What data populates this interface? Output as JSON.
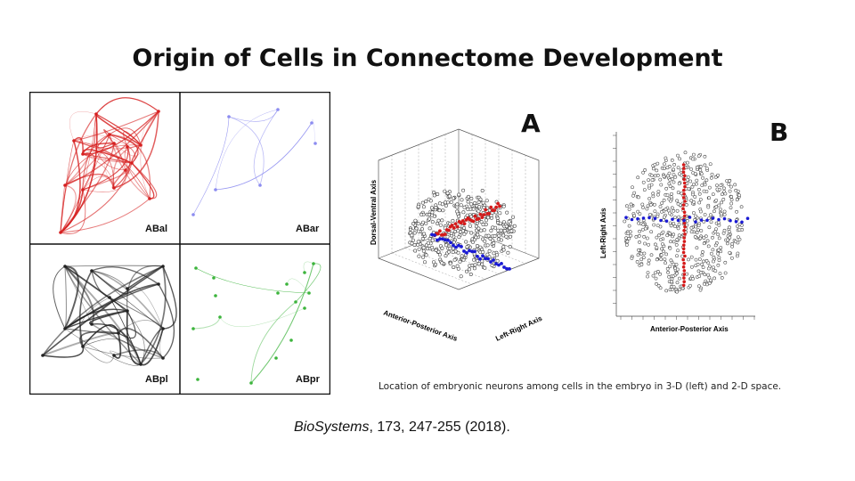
{
  "title": "Origin of Cells in Connectome Development",
  "panels": [
    {
      "label": "ABal",
      "color": "#d62020"
    },
    {
      "label": "ABar",
      "color": "#8c8cf0"
    },
    {
      "label": "ABpl",
      "color": "#222222"
    },
    {
      "label": "ABpr",
      "color": "#3cb43c"
    }
  ],
  "figure_3d": {
    "letter": "A",
    "axis_dv": "Dorsal-Ventral Axis",
    "axis_ap": "Anterior-Posterior Axis",
    "axis_lr": "Left-Right Axis"
  },
  "figure_2d": {
    "letter": "B",
    "axis_lr": "Left-Right Axis",
    "axis_ap": "Anterior-Posterior Axis"
  },
  "caption": "Location of embryonic neurons among cells in the embryo in 3-D (left) and 2-D space.",
  "citation": {
    "journal": "BioSystems",
    "rest": ", 173, 247-255 (2018)."
  },
  "colors": {
    "neuron_red": "#d41a1a",
    "neuron_blue": "#1a1ad4",
    "cell_outline": "#444444"
  }
}
